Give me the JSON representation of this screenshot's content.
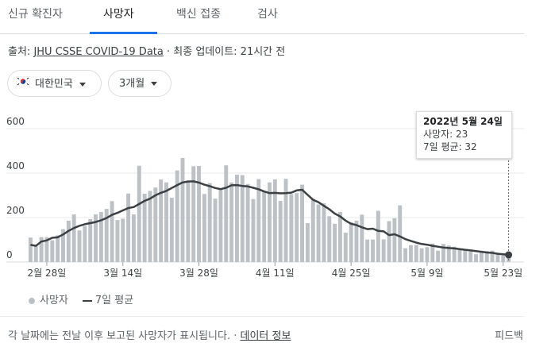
{
  "tabs": [
    {
      "label": "신규 확진자",
      "active": false
    },
    {
      "label": "사망자",
      "active": true
    },
    {
      "label": "백신 접종",
      "active": false
    },
    {
      "label": "검사",
      "active": false
    }
  ],
  "source": {
    "prefix": "출처: ",
    "link": "JHU CSSE COVID-19 Data",
    "sep": " · ",
    "updated": "최종 업데이트: 21시간 전"
  },
  "filters": {
    "region": "대한민국",
    "period": "3개월"
  },
  "tooltip": {
    "date": "2022년 5월 24일",
    "deaths": "사망자: 23",
    "avg": "7일 평균: 32"
  },
  "legend": {
    "bars": "사망자",
    "line": "7일 평균"
  },
  "footer": {
    "note": "각 날짜에는 전날 이후 보고된 사망자가 표시됩니다.",
    "sep": " · ",
    "link": "데이터 정보",
    "feedback": "피드백"
  },
  "colors": {
    "bar": "#bdc1c6",
    "line": "#3c4043",
    "active_tab": "#1a73e8"
  },
  "chart_data": {
    "type": "bar",
    "ylim": [
      0,
      600
    ],
    "yticks": [
      0,
      200,
      400,
      600
    ],
    "xticks": [
      "2월 28일",
      "3월 14일",
      "3월 28일",
      "4월 11일",
      "4월 25일",
      "5월 9일",
      "5월 23일"
    ],
    "xtick_day_index": [
      3,
      17,
      31,
      45,
      59,
      73,
      87
    ],
    "start_date": "2022-02-25",
    "series": [
      {
        "name": "사망자",
        "type": "bar",
        "values": [
          110,
          70,
          112,
          112,
          98,
          120,
          148,
          186,
          214,
          142,
          162,
          193,
          214,
          225,
          239,
          274,
          189,
          195,
          308,
          214,
          433,
          307,
          320,
          335,
          371,
          358,
          289,
          412,
          468,
          367,
          431,
          432,
          306,
          355,
          285,
          326,
          435,
          358,
          393,
          391,
          351,
          283,
          373,
          317,
          358,
          372,
          275,
          374,
          306,
          310,
          348,
          175,
          285,
          259,
          264,
          206,
          172,
          225,
          132,
          179,
          186,
          213,
          101,
          101,
          230,
          102,
          184,
          197,
          255,
          62,
          76,
          77,
          62,
          67,
          83,
          51,
          81,
          74,
          69,
          60,
          52,
          48,
          35,
          46,
          49,
          51,
          38,
          30,
          23
        ]
      },
      {
        "name": "7일 평균",
        "type": "line",
        "values": [
          77,
          73,
          92,
          97,
          109,
          111,
          124,
          140,
          153,
          163,
          170,
          175,
          180,
          188,
          198,
          212,
          221,
          232,
          243,
          247,
          261,
          275,
          285,
          300,
          311,
          320,
          333,
          346,
          358,
          362,
          363,
          357,
          348,
          341,
          333,
          328,
          334,
          345,
          346,
          342,
          340,
          334,
          327,
          317,
          310,
          311,
          309,
          310,
          312,
          322,
          325,
          302,
          280,
          269,
          253,
          237,
          218,
          205,
          186,
          172,
          166,
          156,
          148,
          150,
          140,
          138,
          121,
          125,
          115,
          103,
          95,
          87,
          81,
          78,
          73,
          69,
          65,
          63,
          61,
          58,
          55,
          52,
          49,
          46,
          43,
          41,
          37,
          35,
          32
        ]
      }
    ]
  }
}
